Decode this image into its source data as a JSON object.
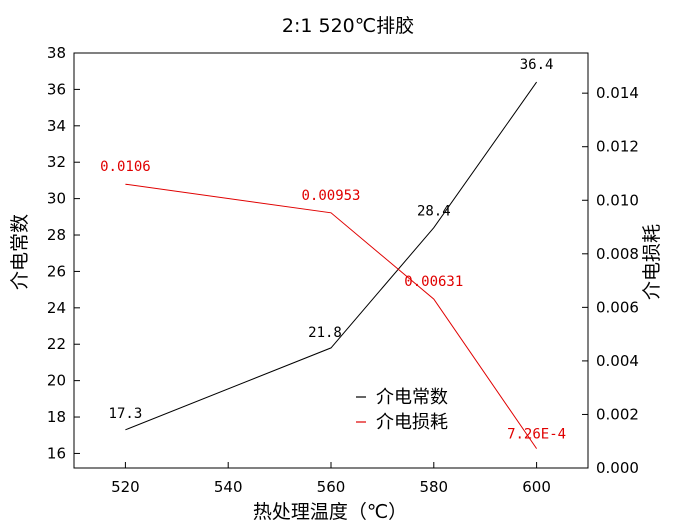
{
  "chart_data": {
    "type": "line",
    "title": "2:1 520℃排胶",
    "xlabel": "热处理温度（℃）",
    "ylabel_left": "介电常数",
    "ylabel_right": "介电损耗",
    "x": [
      520,
      560,
      580,
      600
    ],
    "xlim": [
      510,
      610
    ],
    "xticks": [
      520,
      540,
      560,
      580,
      600
    ],
    "ylim_left": [
      15.2,
      38
    ],
    "yticks_left": [
      16,
      18,
      20,
      22,
      24,
      26,
      28,
      30,
      32,
      34,
      36,
      38
    ],
    "ylim_right": [
      0,
      0.0155
    ],
    "yticks_right": [
      "0.000",
      "0.002",
      "0.004",
      "0.006",
      "0.008",
      "0.010",
      "0.012",
      "0.014"
    ],
    "series": [
      {
        "name": "介电常数",
        "axis": "left",
        "color": "#000000",
        "values": [
          17.3,
          21.8,
          28.4,
          36.4
        ],
        "labels": [
          "17.3",
          "21.8",
          "28.4",
          "36.4"
        ]
      },
      {
        "name": "介电损耗",
        "axis": "right",
        "color": "#e00000",
        "values": [
          0.0106,
          0.00953,
          0.00631,
          0.000726
        ],
        "labels": [
          "0.0106",
          "0.00953",
          "0.00631",
          "7.26E-4"
        ]
      }
    ],
    "legend": {
      "placement": "bottom-right",
      "entries": [
        "介电常数",
        "介电损耗"
      ]
    }
  }
}
